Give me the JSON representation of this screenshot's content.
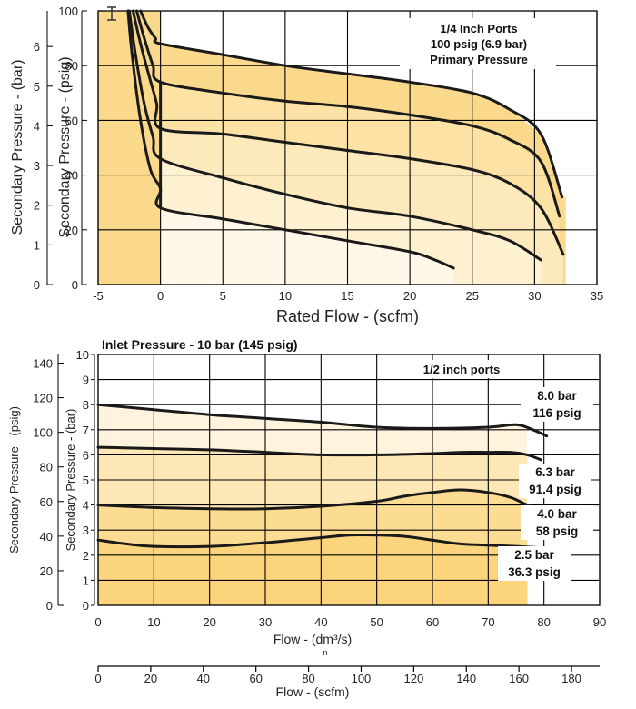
{
  "chart_data": [
    {
      "type": "line",
      "title": "",
      "annotation": [
        "1/4 Inch Ports",
        "100 psig (6.9 bar)",
        "Primary Pressure"
      ],
      "xlabel": "Rated Flow - (scfm)",
      "ylabel_primary": "Secondary Pressure - (psig)",
      "ylabel_secondary": "Secondary Pressure - (bar)",
      "xlim": [
        -5,
        35
      ],
      "ylim": [
        0,
        100
      ],
      "y2lim": [
        0,
        6.897
      ],
      "x_ticks": [
        "-5",
        "0",
        "5",
        "10",
        "15",
        "20",
        "25",
        "30",
        "35"
      ],
      "y_ticks": [
        "0",
        "20",
        "40",
        "60",
        "80",
        "100"
      ],
      "y2_ticks": [
        "0",
        "1",
        "2",
        "3",
        "4",
        "5",
        "6"
      ],
      "grid": true,
      "series": [
        {
          "x": [
            -2.6,
            -2.3,
            -1.6,
            -0.8,
            0,
            0,
            5,
            10,
            15,
            20,
            22,
            23.5
          ],
          "y": [
            100,
            85,
            60,
            42,
            35,
            28,
            24,
            20,
            16,
            12,
            9,
            6
          ]
        },
        {
          "x": [
            -2.5,
            -2.0,
            -1.3,
            -0.6,
            0,
            5,
            10,
            15,
            20,
            25,
            28,
            30.5
          ],
          "y": [
            100,
            84,
            66,
            54,
            46,
            39,
            33,
            28,
            25,
            20,
            16,
            9
          ]
        },
        {
          "x": [
            -2.2,
            -1.6,
            -0.9,
            -0.3,
            0,
            5,
            10,
            15,
            20,
            25,
            28,
            30.5,
            32.3
          ],
          "y": [
            100,
            88,
            76,
            66,
            57,
            55,
            52,
            49,
            46,
            42,
            37,
            28,
            11
          ]
        },
        {
          "x": [
            -1.9,
            -1.3,
            -0.6,
            0,
            5,
            10,
            15,
            20,
            25,
            28,
            30.5,
            32
          ],
          "y": [
            100,
            90,
            80,
            74,
            70,
            67,
            65,
            62,
            58,
            53,
            45,
            25
          ]
        },
        {
          "x": [
            -1.6,
            -1.0,
            -0.4,
            0,
            5,
            10,
            15,
            20,
            25,
            28,
            30.5,
            32.2
          ],
          "y": [
            100,
            94,
            90,
            88,
            84,
            80,
            77,
            74,
            70,
            64,
            55,
            32
          ]
        }
      ],
      "shading": {
        "curve_index": 4,
        "x_end": 32.5
      }
    },
    {
      "type": "line",
      "title": "Inlet Pressure - 10 bar (145 psig)",
      "annotation": "1/2 inch ports",
      "xlabel": "Flow - (dm³/s)",
      "xlabel_secondary": "Flow - (scfm)",
      "extra_label": "n",
      "ylabel_primary": "Secondary Pressure - (bar)",
      "ylabel_secondary": "Secondary Pressure - (psig)",
      "xlim": [
        0,
        90
      ],
      "ylim": [
        0,
        10
      ],
      "x2lim": [
        0,
        190.7
      ],
      "y2lim": [
        0,
        145
      ],
      "x_ticks": [
        "0",
        "10",
        "20",
        "30",
        "40",
        "50",
        "60",
        "70",
        "80",
        "90"
      ],
      "x2_ticks": [
        "0",
        "20",
        "40",
        "60",
        "80",
        "100",
        "120",
        "140",
        "160",
        "180"
      ],
      "y_ticks": [
        "0",
        "1",
        "2",
        "3",
        "4",
        "5",
        "6",
        "7",
        "8",
        "9",
        "10"
      ],
      "y2_ticks": [
        "0",
        "20",
        "40",
        "60",
        "80",
        "100",
        "120",
        "140"
      ],
      "grid": true,
      "series": [
        {
          "name_bar": "8.0 bar",
          "name_psig": "116 psig",
          "x": [
            0,
            10,
            20,
            30,
            40,
            50,
            60,
            70,
            75,
            78,
            80.5
          ],
          "y": [
            8.0,
            7.8,
            7.6,
            7.45,
            7.3,
            7.1,
            7.05,
            7.1,
            7.2,
            7.0,
            6.75
          ]
        },
        {
          "name_bar": "6.3 bar",
          "name_psig": "91.4 psig",
          "x": [
            0,
            10,
            20,
            30,
            40,
            50,
            60,
            65,
            70,
            74,
            77,
            79.5
          ],
          "y": [
            6.3,
            6.25,
            6.2,
            6.1,
            6.0,
            6.0,
            6.05,
            6.1,
            6.1,
            6.1,
            6.0,
            5.8
          ]
        },
        {
          "name_bar": "4.0 bar",
          "name_psig": "58 psig",
          "x": [
            0,
            10,
            20,
            30,
            40,
            50,
            55,
            60,
            65,
            70,
            74,
            77,
            79.5
          ],
          "y": [
            4.0,
            3.9,
            3.85,
            3.85,
            3.95,
            4.15,
            4.35,
            4.5,
            4.6,
            4.5,
            4.3,
            4.0,
            3.8
          ]
        },
        {
          "name_bar": "2.5 bar",
          "name_psig": "36.3 psig",
          "x": [
            0,
            5,
            10,
            20,
            30,
            40,
            45,
            50,
            55,
            60,
            65,
            70,
            75,
            79
          ],
          "y": [
            2.6,
            2.45,
            2.35,
            2.35,
            2.5,
            2.7,
            2.8,
            2.8,
            2.75,
            2.6,
            2.45,
            2.4,
            2.35,
            2.3
          ]
        }
      ],
      "shading": {
        "curve_index": 0,
        "x_end": 77
      }
    }
  ]
}
